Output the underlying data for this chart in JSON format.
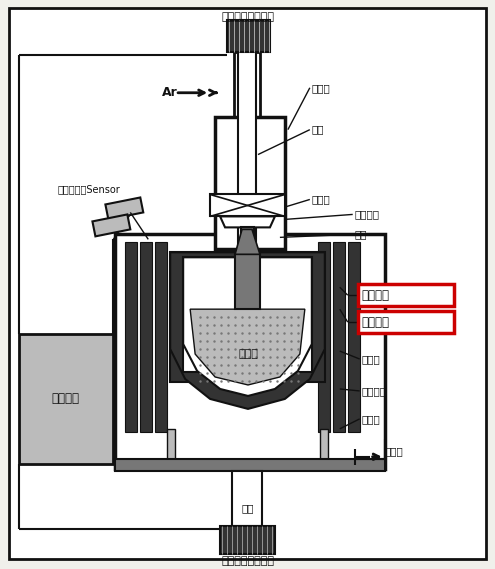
{
  "bg_color": "#f0f0eb",
  "title_top": "籽品上升旋转机构",
  "title_bottom": "坩埚上升旋转机构",
  "label_ar": "Ar",
  "label_upper_chamber": "上炉室",
  "label_guide_wire": "恒线",
  "label_isolation_valve": "隔离阀",
  "label_seed_clamp": "籽品夹头",
  "label_seed_crystal": "籽品",
  "label_quartz_crucible": "石英坩埚",
  "label_graphite_crucible": "石墨坩埚",
  "label_heater": "加热器",
  "label_insulation": "绝缘材料",
  "label_lower_chamber": "下炉室",
  "label_vacuum_pump": "真空泵",
  "label_electrode": "电极",
  "label_silicon_melt": "硅熔液",
  "label_diameter_sensor": "直径控制器Sensor",
  "label_control_system": "控制系统",
  "red_box_color": "#cc0000",
  "lc": "#111111",
  "dark_gray": "#333333",
  "mid_gray": "#777777",
  "light_gray": "#bbbbbb",
  "fill_gray": "#999999"
}
